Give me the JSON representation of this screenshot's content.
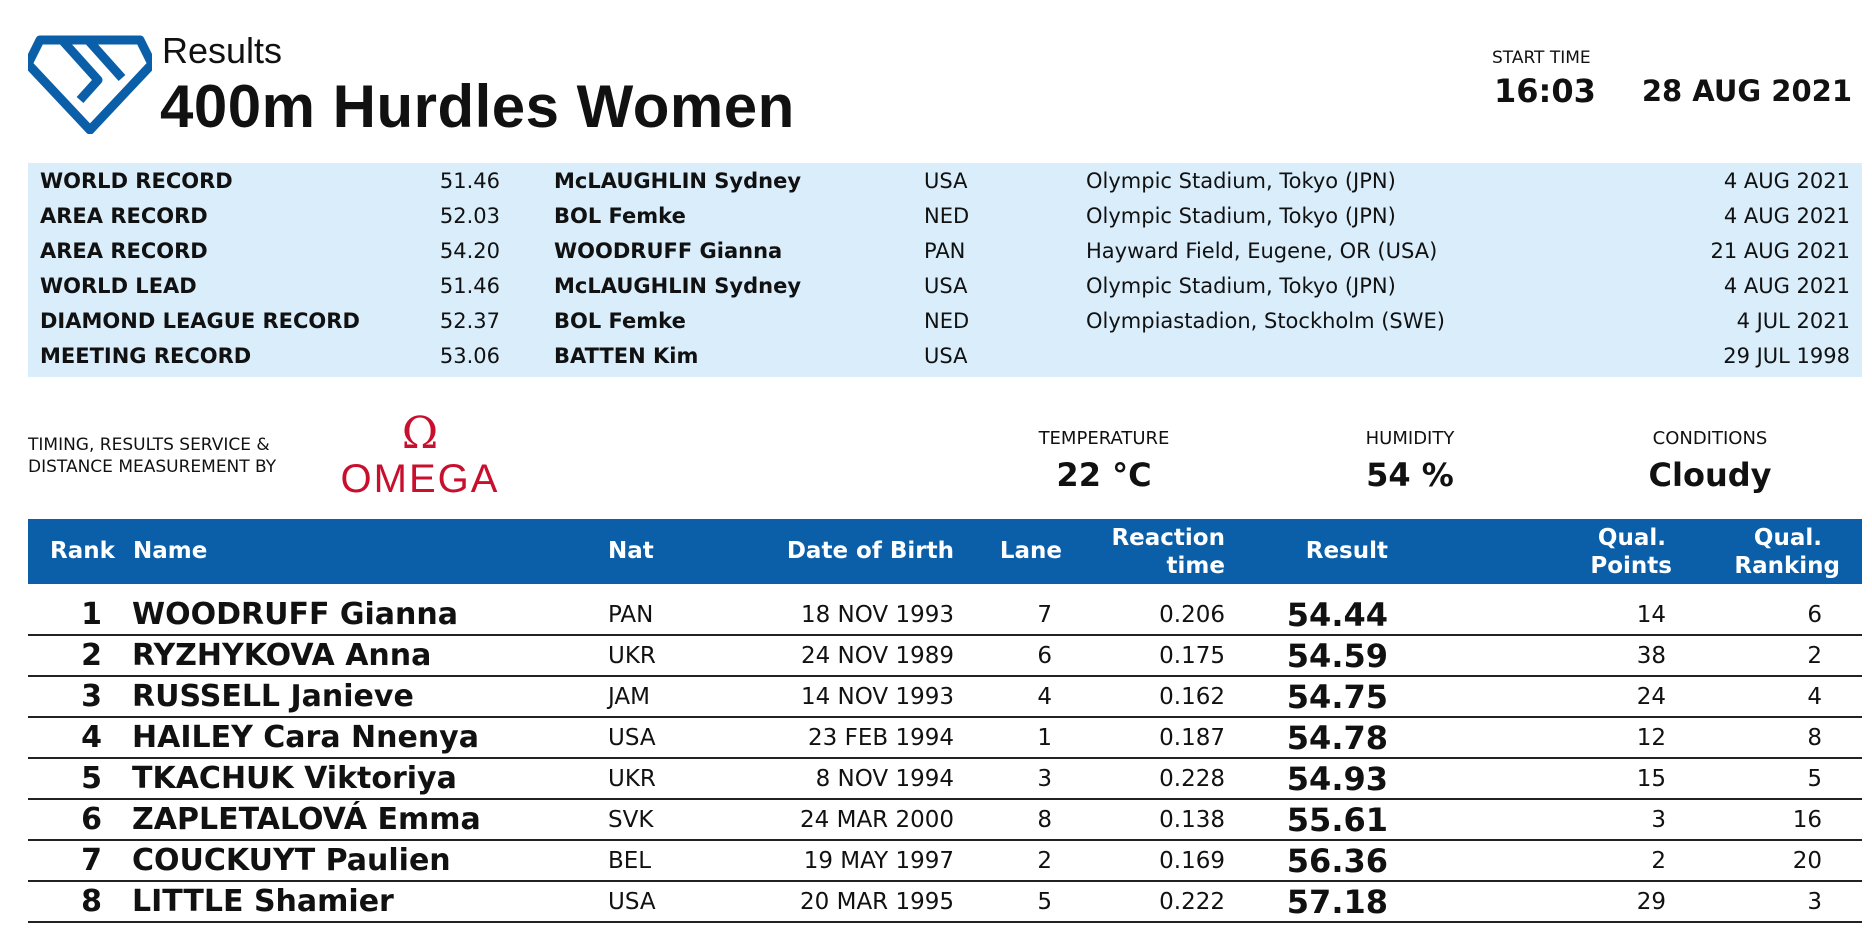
{
  "header": {
    "subtitle": "Results",
    "title": "400m Hurdles Women",
    "start_time_label": "START TIME",
    "start_time": "16:03",
    "date": "28 AUG 2021"
  },
  "colors": {
    "brand_blue": "#0a5fa8",
    "records_bg": "#d9edfb",
    "omega_red": "#c8102e"
  },
  "records": [
    {
      "type": "WORLD RECORD",
      "perf": "51.46",
      "name": "McLAUGHLIN Sydney",
      "nat": "USA",
      "venue": "Olympic Stadium, Tokyo (JPN)",
      "date": "4 AUG 2021"
    },
    {
      "type": "AREA RECORD",
      "perf": "52.03",
      "name": "BOL Femke",
      "nat": "NED",
      "venue": "Olympic Stadium, Tokyo (JPN)",
      "date": "4 AUG 2021"
    },
    {
      "type": "AREA RECORD",
      "perf": "54.20",
      "name": "WOODRUFF Gianna",
      "nat": "PAN",
      "venue": "Hayward Field, Eugene, OR (USA)",
      "date": "21 AUG 2021"
    },
    {
      "type": "WORLD LEAD",
      "perf": "51.46",
      "name": "McLAUGHLIN Sydney",
      "nat": "USA",
      "venue": "Olympic Stadium, Tokyo (JPN)",
      "date": "4 AUG 2021"
    },
    {
      "type": "DIAMOND LEAGUE RECORD",
      "perf": "52.37",
      "name": "BOL Femke",
      "nat": "NED",
      "venue": "Olympiastadion, Stockholm (SWE)",
      "date": "4 JUL 2021"
    },
    {
      "type": "MEETING RECORD",
      "perf": "53.06",
      "name": "BATTEN Kim",
      "nat": "USA",
      "venue": "",
      "date": "29 JUL 1998"
    }
  ],
  "timing": {
    "line1": "TIMING, RESULTS SERVICE &",
    "line2": "DISTANCE MEASUREMENT BY",
    "brand": "OMEGA"
  },
  "weather": {
    "temperature_label": "TEMPERATURE",
    "temperature": "22 °C",
    "humidity_label": "HUMIDITY",
    "humidity": "54 %",
    "conditions_label": "CONDITIONS",
    "conditions": "Cloudy"
  },
  "table": {
    "headers": {
      "rank": "Rank",
      "name": "Name",
      "nat": "Nat",
      "dob": "Date of Birth",
      "lane": "Lane",
      "reaction_1": "Reaction",
      "reaction_2": "time",
      "result": "Result",
      "qp_1": "Qual.",
      "qp_2": "Points",
      "qr_1": "Qual.",
      "qr_2": "Ranking"
    },
    "rows": [
      {
        "rank": "1",
        "name": "WOODRUFF Gianna",
        "nat": "PAN",
        "dob": "18 NOV 1993",
        "lane": "7",
        "reaction": "0.206",
        "result": "54.44",
        "qual_points": "14",
        "qual_ranking": "6"
      },
      {
        "rank": "2",
        "name": "RYZHYKOVA Anna",
        "nat": "UKR",
        "dob": "24 NOV 1989",
        "lane": "6",
        "reaction": "0.175",
        "result": "54.59",
        "qual_points": "38",
        "qual_ranking": "2"
      },
      {
        "rank": "3",
        "name": "RUSSELL Janieve",
        "nat": "JAM",
        "dob": "14 NOV 1993",
        "lane": "4",
        "reaction": "0.162",
        "result": "54.75",
        "qual_points": "24",
        "qual_ranking": "4"
      },
      {
        "rank": "4",
        "name": "HAILEY Cara Nnenya",
        "nat": "USA",
        "dob": "23 FEB 1994",
        "lane": "1",
        "reaction": "0.187",
        "result": "54.78",
        "qual_points": "12",
        "qual_ranking": "8"
      },
      {
        "rank": "5",
        "name": "TKACHUK Viktoriya",
        "nat": "UKR",
        "dob": "8 NOV 1994",
        "lane": "3",
        "reaction": "0.228",
        "result": "54.93",
        "qual_points": "15",
        "qual_ranking": "5"
      },
      {
        "rank": "6",
        "name": "ZAPLETALOVÁ Emma",
        "nat": "SVK",
        "dob": "24 MAR 2000",
        "lane": "8",
        "reaction": "0.138",
        "result": "55.61",
        "qual_points": "3",
        "qual_ranking": "16"
      },
      {
        "rank": "7",
        "name": "COUCKUYT Paulien",
        "nat": "BEL",
        "dob": "19 MAY 1997",
        "lane": "2",
        "reaction": "0.169",
        "result": "56.36",
        "qual_points": "2",
        "qual_ranking": "20"
      },
      {
        "rank": "8",
        "name": "LITTLE Shamier",
        "nat": "USA",
        "dob": "20 MAR 1995",
        "lane": "5",
        "reaction": "0.222",
        "result": "57.18",
        "qual_points": "29",
        "qual_ranking": "3"
      }
    ]
  }
}
